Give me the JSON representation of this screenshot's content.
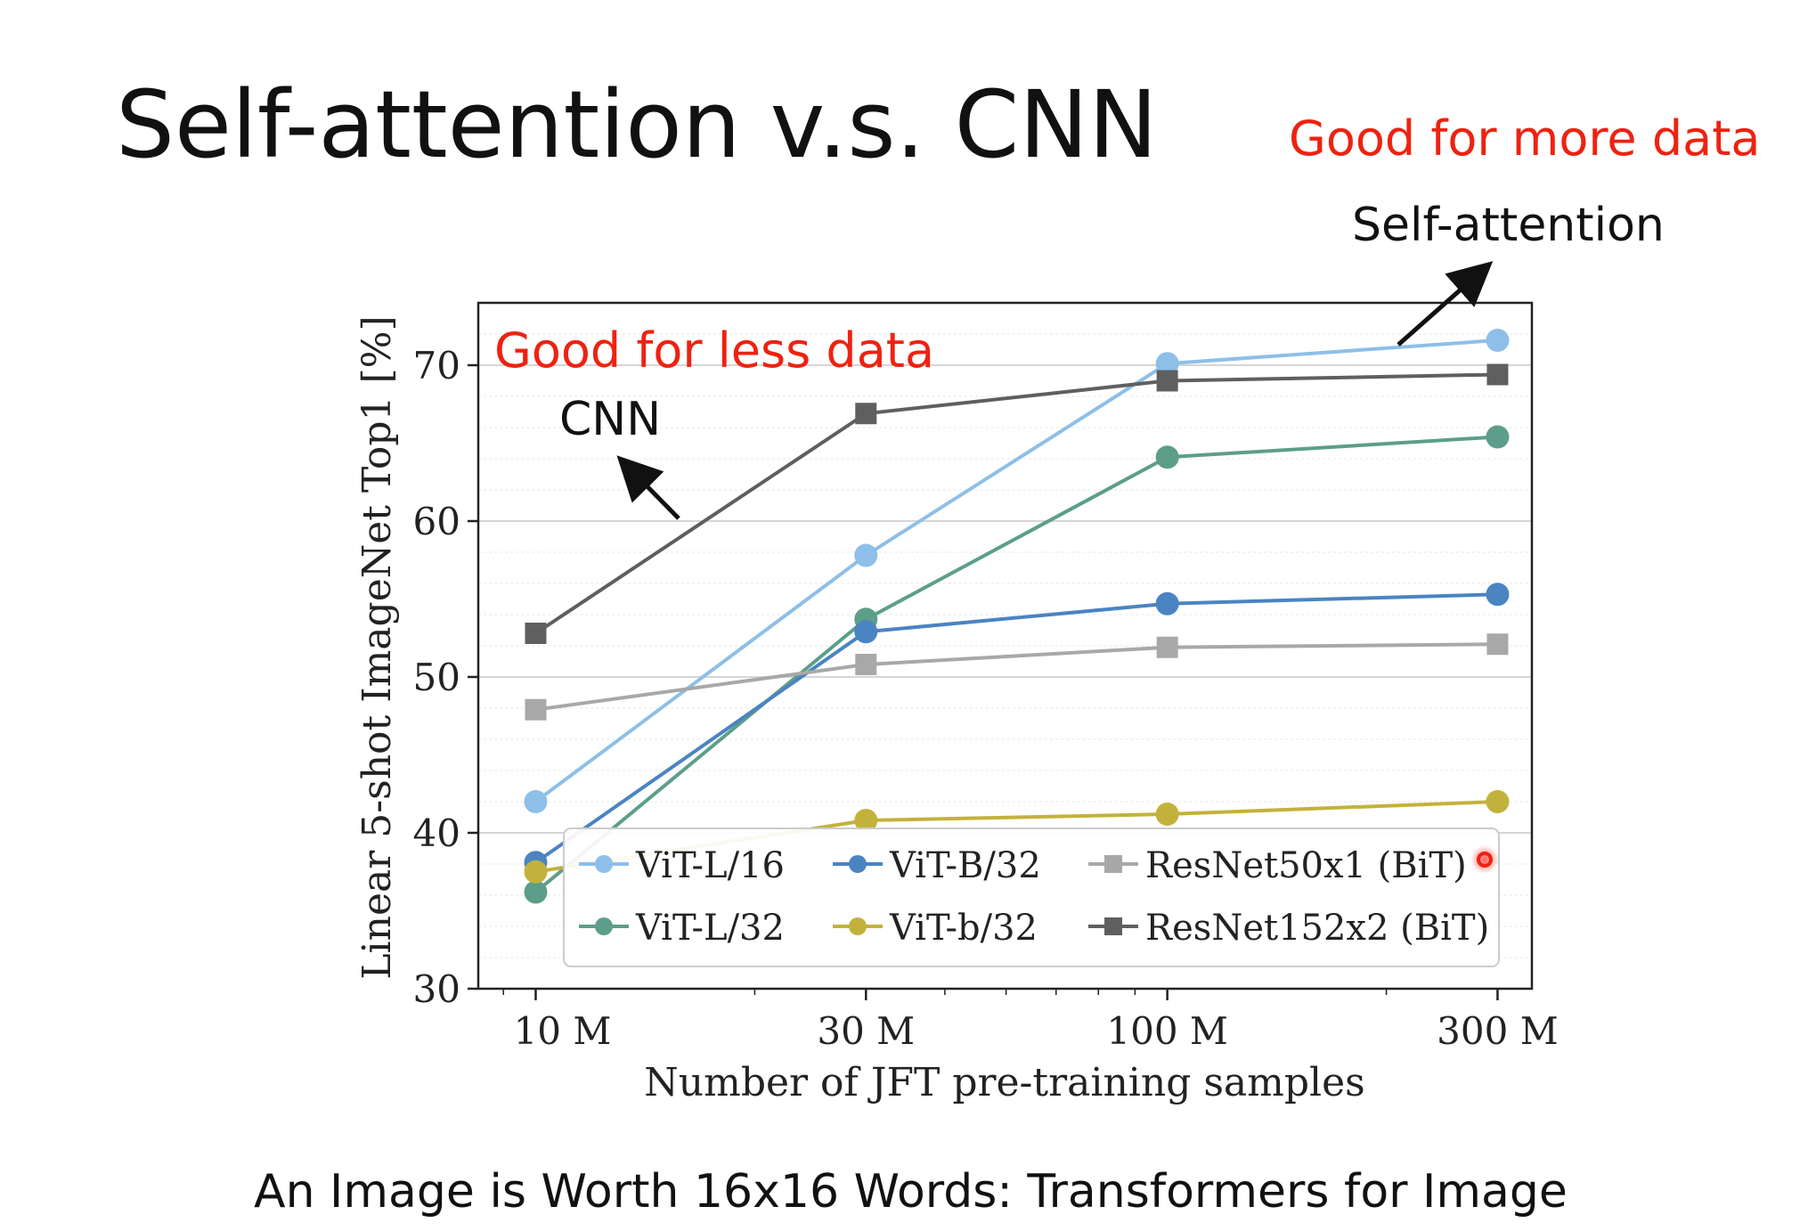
{
  "slide": {
    "title": "Self-attention v.s. CNN",
    "footer": "An Image is Worth 16x16 Words: Transformers for Image"
  },
  "annotations": {
    "more_data": "Good for more data",
    "self_attention": "Self-attention",
    "less_data": "Good for less data",
    "cnn": "CNN",
    "highlight_color": "#ee2211"
  },
  "chart_data": {
    "type": "line",
    "title": "",
    "xlabel": "Number of JFT pre-training samples",
    "ylabel": "Linear 5-shot ImageNet Top1 [%]",
    "x_scale": "log",
    "x": [
      9,
      30,
      90,
      300
    ],
    "xticks": [
      10,
      30,
      100,
      300
    ],
    "xtick_labels": [
      "10 M",
      "30 M",
      "100 M",
      "300 M"
    ],
    "ylim": [
      30,
      74
    ],
    "yticks": [
      30,
      40,
      50,
      60,
      70
    ],
    "ytick_labels": [
      "30",
      "40",
      "50",
      "60",
      "70"
    ],
    "grid": true,
    "legend_position": "lower-right",
    "series": [
      {
        "name": "ViT-L/16",
        "color": "#8dbfe8",
        "marker": "circle",
        "values": [
          42,
          57.8,
          70.1,
          71.6
        ]
      },
      {
        "name": "ViT-L/32",
        "color": "#5c9e8a",
        "marker": "circle",
        "values": [
          36.2,
          53.7,
          64.1,
          65.4
        ]
      },
      {
        "name": "ViT-B/32",
        "color": "#4a84c2",
        "marker": "circle",
        "values": [
          38.1,
          52.9,
          54.7,
          55.3
        ]
      },
      {
        "name": "ViT-b/32",
        "color": "#c2b23c",
        "marker": "circle",
        "values": [
          37.5,
          40.8,
          41.2,
          42
        ]
      },
      {
        "name": "ResNet50x1 (BiT)",
        "color": "#a8a8a8",
        "marker": "square",
        "values": [
          47.9,
          50.8,
          51.9,
          52.1
        ]
      },
      {
        "name": "ResNet152x2 (BiT)",
        "color": "#5f5f5f",
        "marker": "square",
        "values": [
          52.8,
          66.9,
          69,
          69.4
        ]
      }
    ]
  }
}
